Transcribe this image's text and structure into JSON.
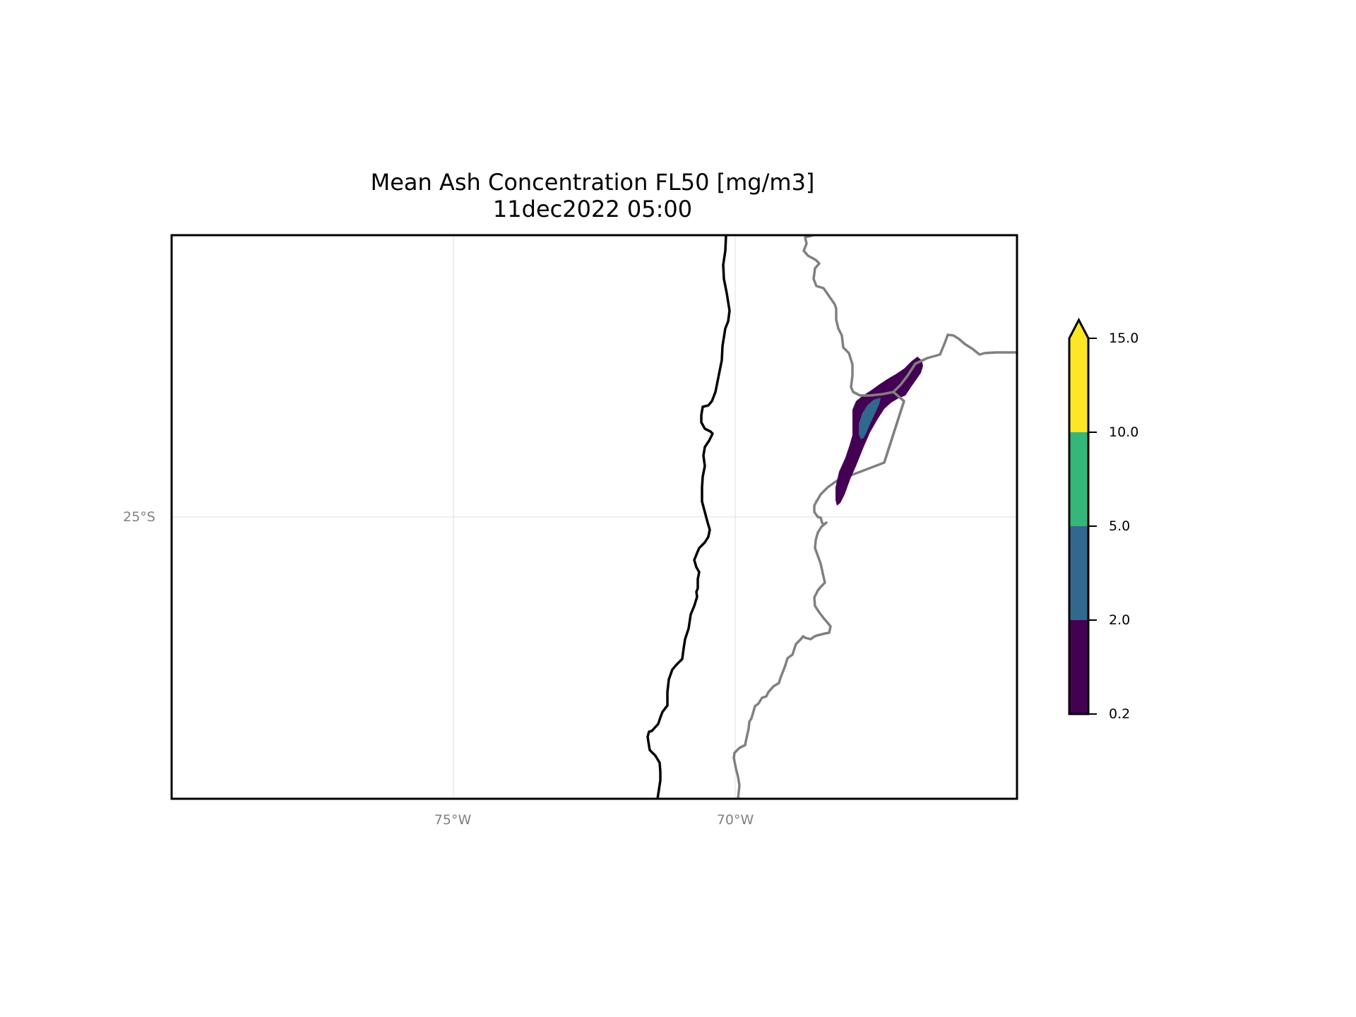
{
  "title": {
    "line1": "Mean Ash Concentration FL50 [mg/m3]",
    "line2": "11dec2022 05:00"
  },
  "map": {
    "lon_range": [
      -80,
      -65
    ],
    "lat_range": [
      -30,
      -20
    ],
    "gridlines": true,
    "lon_ticks": [
      {
        "lon": -75,
        "label": "75°W"
      },
      {
        "lon": -70,
        "label": "70°W"
      }
    ],
    "lat_ticks": [
      {
        "lat": -25,
        "label": "25°S"
      }
    ],
    "coastline_color": "#000000",
    "border_color": "#808080",
    "ash_plume": {
      "description_levels": [
        "0.2-2.0",
        "2.0-5.0"
      ],
      "outer_level": "0.2-2.0",
      "inner_level": "2.0-5.0"
    }
  },
  "colorbar": {
    "levels": [
      "0.2",
      "2.0",
      "5.0",
      "10.0",
      "15.0"
    ],
    "colors": [
      "#440154",
      "#31688e",
      "#35b779",
      "#fde725"
    ],
    "extend": "max"
  }
}
